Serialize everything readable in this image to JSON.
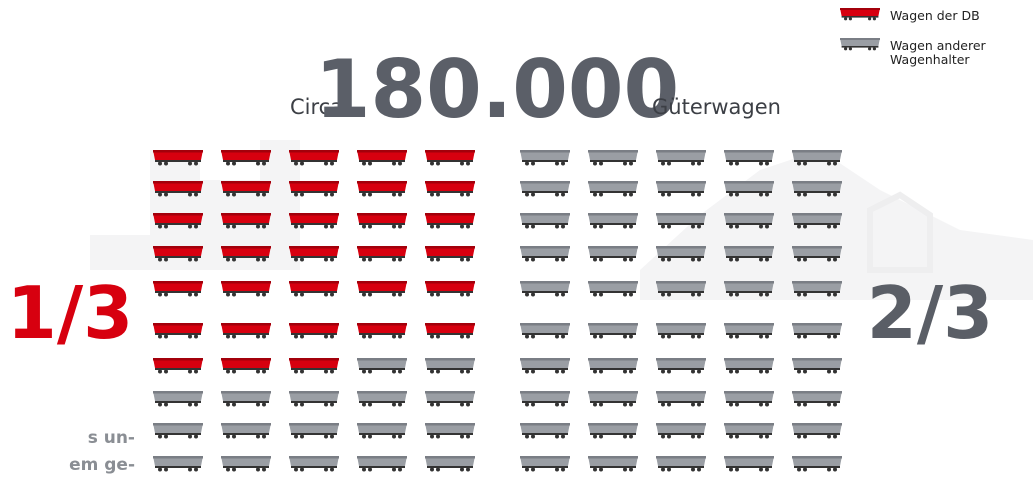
{
  "legend": [
    {
      "lines": [
        "Wagen der DB"
      ],
      "color": "#d7000f"
    },
    {
      "lines": [
        "Wagen anderer",
        "Wagenhalter"
      ],
      "color": "#9a9ea4"
    }
  ],
  "headline": {
    "prefix": "Circa",
    "number": "180.000",
    "suffix": "Güterwagen"
  },
  "fractions": {
    "left": "1/3",
    "right": "2/3"
  },
  "icons": {
    "db": 33,
    "other": 67
  },
  "cut_text": [
    "s un-",
    "em ge-"
  ]
}
